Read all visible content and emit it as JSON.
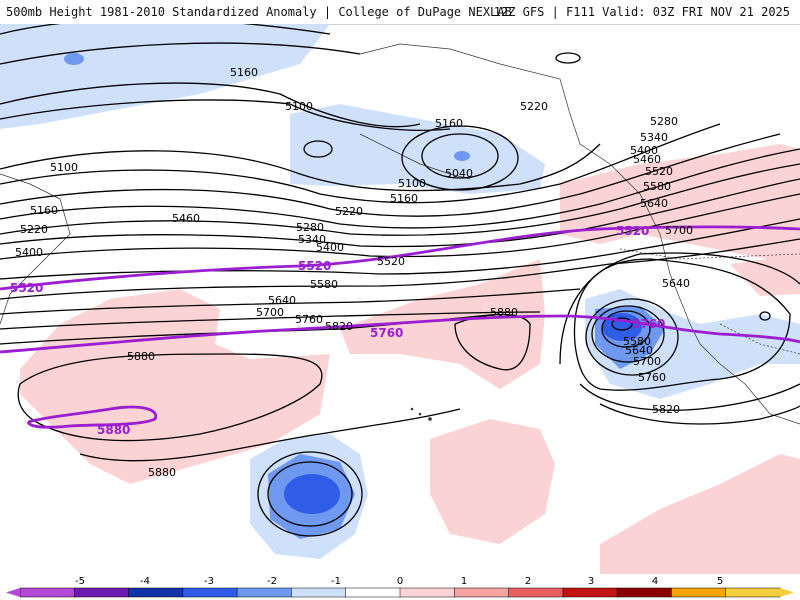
{
  "header": {
    "product": "500mb Height 1981-2010 Standardized Anomaly | College of DuPage NEXLAB",
    "run_info": "12Z GFS | F111 Valid: 03Z FRI NOV 21 2025"
  },
  "contours": {
    "black": [
      "5160",
      "5100",
      "5100",
      "5160",
      "5040",
      "5100",
      "5160",
      "5220",
      "5160",
      "5220",
      "5400",
      "5460",
      "5280",
      "5340",
      "5400",
      "5220",
      "5520",
      "5580",
      "5640",
      "5700",
      "5760",
      "5820",
      "5880",
      "5880",
      "5880",
      "5280",
      "5340",
      "5400",
      "5460",
      "5520",
      "5580",
      "5640",
      "5700",
      "5640",
      "5580",
      "5640",
      "5700",
      "5760",
      "5820"
    ],
    "purple": [
      "5520",
      "5520",
      "5520",
      "5760",
      "5760",
      "5880"
    ]
  },
  "legend": {
    "ticks": [
      "-5",
      "-4",
      "-3",
      "-2",
      "-1",
      "0",
      "1",
      "2",
      "3",
      "4",
      "5"
    ],
    "colors": [
      "#b347d6",
      "#6b1bb0",
      "#1233a8",
      "#2f5de8",
      "#6f98f0",
      "#cfe0fb",
      "#ffffff",
      "#fbd3d4",
      "#f5a2a2",
      "#e85f5f",
      "#c21313",
      "#8c0000",
      "#f7a400",
      "#f6cf3e"
    ]
  },
  "colors": {
    "contour": "#000000",
    "highlight": "#9b1fd0",
    "neg_light": "#cfe0fb",
    "neg_mid": "#6f98f0",
    "neg_dark": "#2f5de8",
    "pos_light": "#fbd3d4"
  }
}
